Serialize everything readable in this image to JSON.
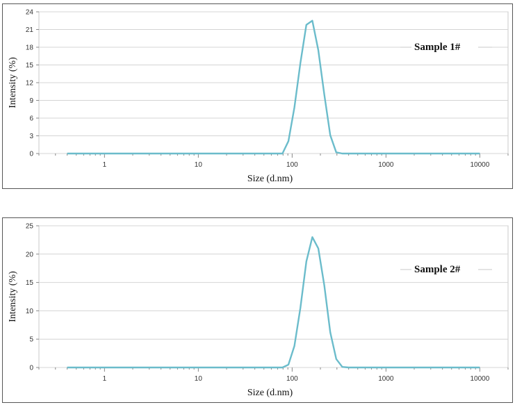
{
  "chart_data": [
    {
      "type": "line",
      "annotation": "Sample 1#",
      "xlabel": "Size (d.nm)",
      "ylabel": "Intensity (%)",
      "x_scale": "log",
      "xlim": [
        0.2,
        20000
      ],
      "ylim": [
        0,
        24
      ],
      "x_ticks": [
        1,
        10,
        100,
        1000,
        10000
      ],
      "x_tick_labels": [
        "1",
        "10",
        "100",
        "1000",
        "10000"
      ],
      "y_ticks": [
        0,
        3,
        6,
        9,
        12,
        15,
        18,
        21,
        24
      ],
      "y_tick_labels": [
        "0",
        "3",
        "6",
        "9",
        "12",
        "15",
        "18",
        "21",
        "24"
      ],
      "grid": true,
      "line_color": "#6bbccb",
      "series": [
        {
          "x": [
            0.4,
            1,
            10,
            50,
            78.8,
            91.3,
            105.7,
            122.4,
            141.8,
            164.2,
            190.1,
            220.2,
            255,
            295.3,
            342,
            400,
            1000,
            10000
          ],
          "y": [
            0,
            0,
            0,
            0,
            0,
            2.1,
            7.8,
            15.3,
            21.8,
            22.5,
            17.5,
            10,
            3.1,
            0.2,
            0,
            0,
            0,
            0
          ]
        }
      ]
    },
    {
      "type": "line",
      "annotation": "Sample 2#",
      "xlabel": "Size (d.nm)",
      "ylabel": "Intensity (%)",
      "x_scale": "log",
      "xlim": [
        0.2,
        20000
      ],
      "ylim": [
        0,
        25
      ],
      "x_ticks": [
        1,
        10,
        100,
        1000,
        10000
      ],
      "x_tick_labels": [
        "1",
        "10",
        "100",
        "1000",
        "10000"
      ],
      "y_ticks": [
        0,
        5,
        10,
        15,
        20,
        25
      ],
      "y_tick_labels": [
        "0",
        "5",
        "10",
        "15",
        "20",
        "25"
      ],
      "grid": true,
      "line_color": "#6bbccb",
      "series": [
        {
          "x": [
            0.4,
            1,
            10,
            50,
            78.8,
            91.3,
            105.7,
            122.4,
            141.8,
            164.2,
            190.1,
            220.2,
            255,
            295.3,
            342,
            400,
            1000,
            10000
          ],
          "y": [
            0,
            0,
            0,
            0,
            0,
            0.5,
            3.8,
            10.5,
            18.7,
            23,
            21,
            14.5,
            6.2,
            1.5,
            0.1,
            0,
            0,
            0
          ]
        }
      ]
    }
  ]
}
